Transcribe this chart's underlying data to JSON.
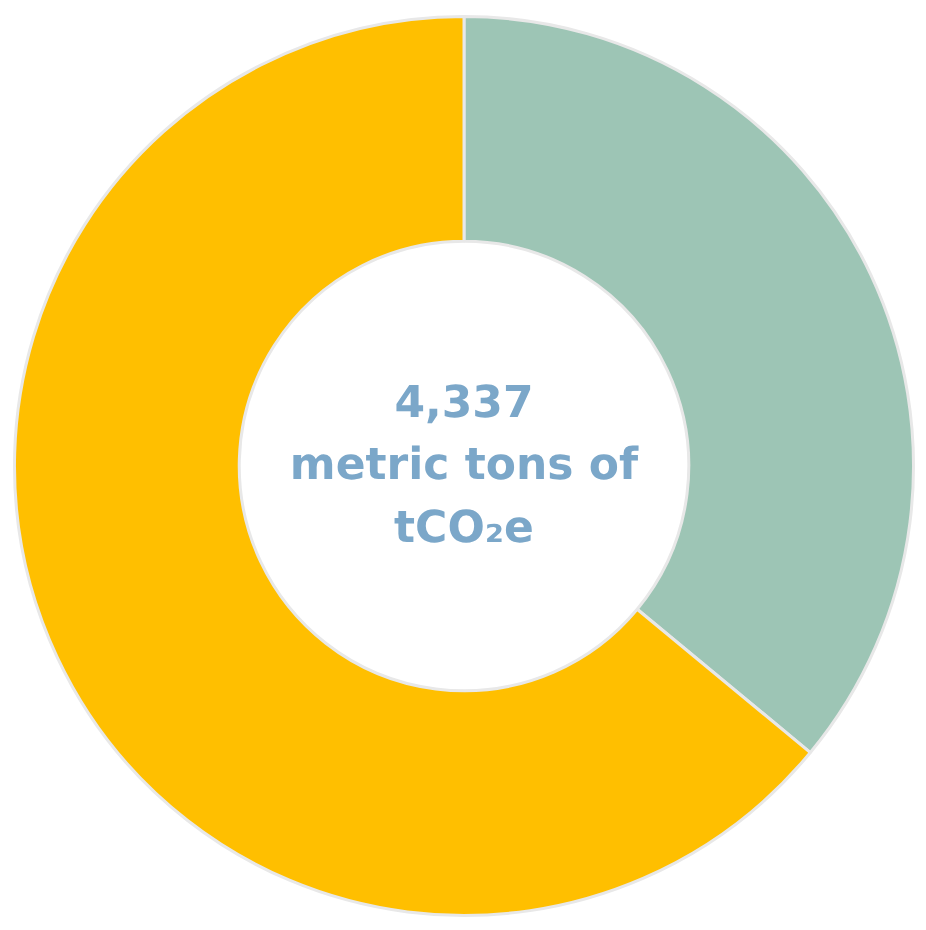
{
  "chart_data": {
    "type": "donut",
    "categories": [
      null,
      null
    ],
    "values": [
      36,
      64
    ],
    "colors": [
      "#9dc5b5",
      "#ffbf00"
    ],
    "annotations": [
      "4,337\nmetric tons of\ntCO₂e"
    ]
  }
}
